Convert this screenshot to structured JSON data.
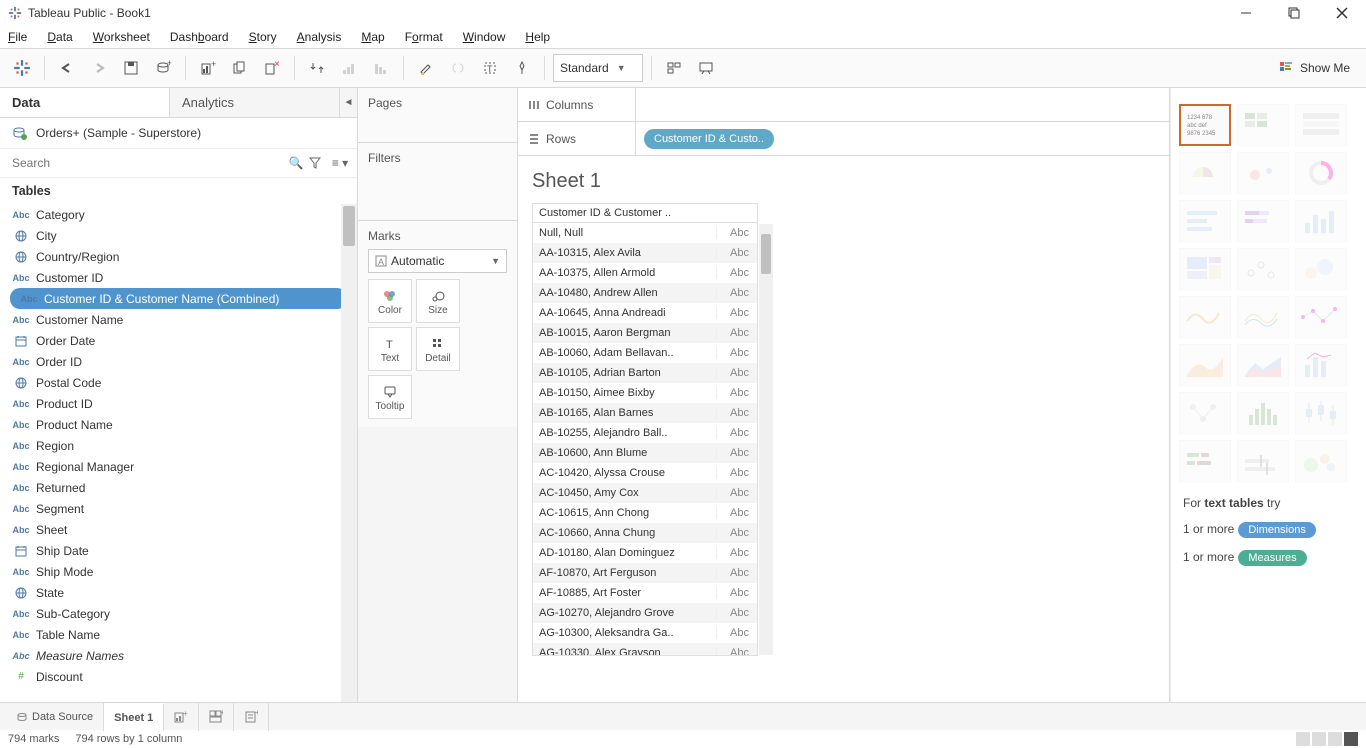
{
  "window": {
    "title": "Tableau Public - Book1"
  },
  "menu": [
    "File",
    "Data",
    "Worksheet",
    "Dashboard",
    "Story",
    "Analysis",
    "Map",
    "Format",
    "Window",
    "Help"
  ],
  "menu_ul_idx": [
    0,
    0,
    0,
    4,
    0,
    0,
    0,
    1,
    0,
    0
  ],
  "toolbar": {
    "fit_dropdown": "Standard"
  },
  "left": {
    "tabs": {
      "data": "Data",
      "analytics": "Analytics"
    },
    "datasource": "Orders+ (Sample - Superstore)",
    "search_placeholder": "Search",
    "tables_header": "Tables",
    "fields": [
      {
        "icon": "Abc",
        "label": "Category"
      },
      {
        "icon": "globe",
        "label": "City"
      },
      {
        "icon": "globe",
        "label": "Country/Region"
      },
      {
        "icon": "Abc",
        "label": "Customer ID"
      },
      {
        "icon": "Abc",
        "label": "Customer ID & Customer Name (Combined)",
        "selected": true
      },
      {
        "icon": "Abc",
        "label": "Customer Name"
      },
      {
        "icon": "cal",
        "label": "Order Date"
      },
      {
        "icon": "Abc",
        "label": "Order ID"
      },
      {
        "icon": "globe",
        "label": "Postal Code"
      },
      {
        "icon": "Abc",
        "label": "Product ID"
      },
      {
        "icon": "Abc",
        "label": "Product Name"
      },
      {
        "icon": "Abc",
        "label": "Region"
      },
      {
        "icon": "Abc",
        "label": "Regional Manager"
      },
      {
        "icon": "Abc",
        "label": "Returned"
      },
      {
        "icon": "Abc",
        "label": "Segment"
      },
      {
        "icon": "Abc",
        "label": "Sheet"
      },
      {
        "icon": "cal",
        "label": "Ship Date"
      },
      {
        "icon": "Abc",
        "label": "Ship Mode"
      },
      {
        "icon": "globe",
        "label": "State"
      },
      {
        "icon": "Abc",
        "label": "Sub-Category"
      },
      {
        "icon": "Abc",
        "label": "Table Name"
      },
      {
        "icon": "Abc",
        "label": "Measure Names",
        "italic": true
      },
      {
        "icon": "num",
        "label": "Discount"
      }
    ]
  },
  "shelves": {
    "pages": "Pages",
    "filters": "Filters",
    "marks": "Marks",
    "mark_type": "Automatic",
    "cards": [
      "Color",
      "Size",
      "Text",
      "Detail",
      "Tooltip"
    ]
  },
  "columns_label": "Columns",
  "rows_label": "Rows",
  "rows_pill": "Customer ID & Custo..",
  "sheet": {
    "title": "Sheet 1",
    "col_header": "Customer ID & Customer ..",
    "abc": "Abc",
    "rows": [
      "Null, Null",
      "AA-10315, Alex Avila",
      "AA-10375, Allen Armold",
      "AA-10480, Andrew Allen",
      "AA-10645, Anna Andreadi",
      "AB-10015, Aaron Bergman",
      "AB-10060, Adam Bellavan..",
      "AB-10105, Adrian Barton",
      "AB-10150, Aimee Bixby",
      "AB-10165, Alan Barnes",
      "AB-10255, Alejandro Ball..",
      "AB-10600, Ann Blume",
      "AC-10420, Alyssa Crouse",
      "AC-10450, Amy Cox",
      "AC-10615, Ann Chong",
      "AC-10660, Anna Chung",
      "AD-10180, Alan Dominguez",
      "AF-10870, Art Ferguson",
      "AF-10885, Art Foster",
      "AG-10270, Alejandro Grove",
      "AG-10300, Aleksandra Ga..",
      "AG-10330, Alex Grayson"
    ]
  },
  "showme": {
    "label": "Show Me",
    "hint_prefix": "For",
    "hint_bold": "text tables",
    "hint_suffix": "try",
    "line1": "1 or more",
    "pill1": "Dimensions",
    "line2": "1 or more",
    "pill2": "Measures"
  },
  "bottom": {
    "data_source": "Data Source",
    "sheet_tab": "Sheet 1"
  },
  "status": {
    "marks": "794 marks",
    "layout": "794 rows by 1 column"
  },
  "colors": {
    "pill_blue": "#5fa8c7",
    "selection_blue": "#4f94cd",
    "showme_border": "#c86a2e"
  }
}
